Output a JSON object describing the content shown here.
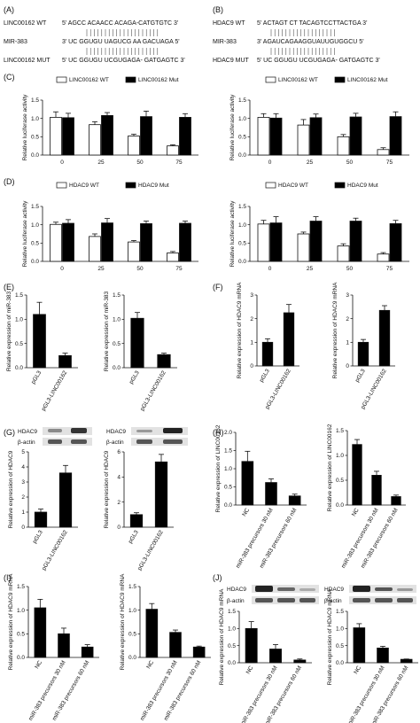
{
  "panels": {
    "A": {
      "label": "(A)",
      "rows": [
        {
          "name": "LINC00162 WT",
          "seq": "5' AGCC ACAACC ACAGA-CATGTGTC 3'"
        },
        {
          "name": "MIR-383",
          "seq": "3' UC GGUGU UAGUCG AA GACUAGA 5'"
        },
        {
          "name": "LINC00162 MUT",
          "seq": "5' UC GGUGU UCGUGAGA- GATGAGTC 3'"
        }
      ]
    },
    "B": {
      "label": "(B)",
      "rows": [
        {
          "name": "HDAC9 WT",
          "seq": "5' ACTAGT CT TACAGTCCTTACTGA 3'"
        },
        {
          "name": "MIR-383",
          "seq": "3' AGAUCAGAAGGUAUUGUGGCU 5'"
        },
        {
          "name": "HDAC9 MUT",
          "seq": "5' UC GGUGU UCGUGAGA- GATGAGTC 3'"
        }
      ]
    },
    "C": {
      "label": "(C)"
    },
    "D": {
      "label": "(D)"
    },
    "E": {
      "label": "(E)"
    },
    "F": {
      "label": "(F)"
    },
    "G": {
      "label": "(G)",
      "blot": [
        "HDAC9",
        "β-actin"
      ]
    },
    "H": {
      "label": "(H)"
    },
    "I": {
      "label": "(I)"
    },
    "J": {
      "label": "(J)",
      "blot": [
        "HDAC9",
        "β-actin"
      ]
    }
  },
  "chart_data": [
    {
      "id": "C-left",
      "type": "bar",
      "ylabel": "Relative luciferase activity",
      "categories": [
        "0",
        "25",
        "50",
        "75"
      ],
      "ylim": [
        0,
        1.5
      ],
      "yticks": [
        0,
        0.5,
        1.0,
        1.5
      ],
      "legend": [
        "LINC00162 WT",
        "LINC00162 Mut"
      ],
      "series": [
        {
          "name": "LINC00162 WT",
          "values": [
            1.03,
            0.83,
            0.52,
            0.25
          ],
          "err": [
            0.15,
            0.08,
            0.05,
            0.03
          ]
        },
        {
          "name": "LINC00162 Mut",
          "values": [
            1.02,
            1.08,
            1.05,
            1.03
          ],
          "err": [
            0.12,
            0.08,
            0.15,
            0.1
          ]
        }
      ]
    },
    {
      "id": "C-right",
      "type": "bar",
      "ylabel": "Relative luciferase activity",
      "categories": [
        "0",
        "25",
        "50",
        "75"
      ],
      "ylim": [
        0,
        1.5
      ],
      "yticks": [
        0,
        0.5,
        1.0,
        1.5
      ],
      "legend": [
        "LINC00162 WT",
        "LINC00162 Mut"
      ],
      "series": [
        {
          "name": "LINC00162 WT",
          "values": [
            1.03,
            0.82,
            0.5,
            0.15
          ],
          "err": [
            0.1,
            0.15,
            0.06,
            0.05
          ]
        },
        {
          "name": "LINC00162 Mut",
          "values": [
            1.01,
            1.02,
            1.04,
            1.05
          ],
          "err": [
            0.12,
            0.1,
            0.1,
            0.13
          ]
        }
      ]
    },
    {
      "id": "D-left",
      "type": "bar",
      "ylabel": "Relative luciferase activity",
      "categories": [
        "0",
        "25",
        "50",
        "75"
      ],
      "ylim": [
        0,
        1.5
      ],
      "yticks": [
        0,
        0.5,
        1.0,
        1.5
      ],
      "legend": [
        "HDAC9 WT",
        "HDAC9 Mut"
      ],
      "series": [
        {
          "name": "HDAC9 WT",
          "values": [
            1.01,
            0.68,
            0.53,
            0.23
          ],
          "err": [
            0.06,
            0.07,
            0.04,
            0.04
          ]
        },
        {
          "name": "HDAC9 Mut",
          "values": [
            1.04,
            1.05,
            1.03,
            1.04
          ],
          "err": [
            0.1,
            0.12,
            0.07,
            0.06
          ]
        }
      ]
    },
    {
      "id": "D-right",
      "type": "bar",
      "ylabel": "Relative luciferase activity",
      "categories": [
        "0",
        "25",
        "50",
        "75"
      ],
      "ylim": [
        0,
        1.5
      ],
      "yticks": [
        0,
        0.5,
        1.0,
        1.5
      ],
      "legend": [
        "HDAC9 WT",
        "HDAC9 Mut"
      ],
      "series": [
        {
          "name": "HDAC9 WT",
          "values": [
            1.02,
            0.75,
            0.42,
            0.2
          ],
          "err": [
            0.1,
            0.05,
            0.06,
            0.04
          ]
        },
        {
          "name": "HDAC9 Mut",
          "values": [
            1.05,
            1.1,
            1.1,
            1.03
          ],
          "err": [
            0.17,
            0.12,
            0.08,
            0.09
          ]
        }
      ]
    },
    {
      "id": "E-left",
      "type": "bar",
      "ylabel": "Relative expression of miR-383",
      "categories": [
        "pGL3",
        "pGL3-LINC00162"
      ],
      "ylim": [
        0,
        1.5
      ],
      "yticks": [
        0,
        0.5,
        1.0,
        1.5
      ],
      "series": [
        {
          "values": [
            1.1,
            0.25
          ],
          "err": [
            0.25,
            0.05
          ]
        }
      ]
    },
    {
      "id": "E-right",
      "type": "bar",
      "ylabel": "Relative expression of miR-383",
      "categories": [
        "pGL3",
        "pGL3-LINC00162"
      ],
      "ylim": [
        0,
        1.5
      ],
      "yticks": [
        0,
        0.5,
        1.0,
        1.5
      ],
      "series": [
        {
          "values": [
            1.02,
            0.27
          ],
          "err": [
            0.12,
            0.03
          ]
        }
      ]
    },
    {
      "id": "F-left",
      "type": "bar",
      "ylabel": "Relative expression of HDAC9 mRNA",
      "categories": [
        "pGL3",
        "pGL3-LINC00162"
      ],
      "ylim": [
        0,
        3
      ],
      "yticks": [
        0,
        1,
        2,
        3
      ],
      "series": [
        {
          "values": [
            1.0,
            2.25
          ],
          "err": [
            0.15,
            0.35
          ]
        }
      ]
    },
    {
      "id": "F-right",
      "type": "bar",
      "ylabel": "Relative expression of HDAC9 mRNA",
      "categories": [
        "pGL3",
        "pGL3-LINC00162"
      ],
      "ylim": [
        0,
        3
      ],
      "yticks": [
        0,
        1,
        2,
        3
      ],
      "series": [
        {
          "values": [
            1.0,
            2.35
          ],
          "err": [
            0.12,
            0.2
          ]
        }
      ]
    },
    {
      "id": "G-left",
      "type": "bar",
      "ylabel": "Relative expression of HDAC9",
      "categories": [
        "pGL3",
        "pGL3-LINC00162"
      ],
      "ylim": [
        0,
        5
      ],
      "yticks": [
        0,
        1,
        2,
        3,
        4,
        5
      ],
      "series": [
        {
          "values": [
            1.0,
            3.6
          ],
          "err": [
            0.2,
            0.5
          ]
        }
      ]
    },
    {
      "id": "G-right",
      "type": "bar",
      "ylabel": "Relative expression of HDAC9",
      "categories": [
        "pGL3",
        "pGL3-LINC00162"
      ],
      "ylim": [
        0,
        6
      ],
      "yticks": [
        0,
        2,
        4,
        6
      ],
      "series": [
        {
          "values": [
            1.0,
            5.2
          ],
          "err": [
            0.15,
            0.6
          ]
        }
      ]
    },
    {
      "id": "H-left",
      "type": "bar",
      "ylabel": "Relative expression of LINC00162",
      "categories": [
        "NC",
        "miR-383 precursors 30 nM",
        "miR-383 precursors 60 nM"
      ],
      "ylim": [
        0,
        2.0
      ],
      "yticks": [
        0,
        0.5,
        1.0,
        1.5,
        2.0
      ],
      "series": [
        {
          "values": [
            1.2,
            0.62,
            0.25
          ],
          "err": [
            0.28,
            0.1,
            0.05
          ]
        }
      ]
    },
    {
      "id": "H-right",
      "type": "bar",
      "ylabel": "Relative expression of LINC00162",
      "categories": [
        "NC",
        "miR-383 precursors 30 nM",
        "miR-383 precursors 60 nM"
      ],
      "ylim": [
        0,
        1.5
      ],
      "yticks": [
        0,
        0.5,
        1.0,
        1.5
      ],
      "series": [
        {
          "values": [
            1.22,
            0.6,
            0.17
          ],
          "err": [
            0.1,
            0.08,
            0.03
          ]
        }
      ]
    },
    {
      "id": "I-left",
      "type": "bar",
      "ylabel": "Relative expression of HDAC9 mRNA",
      "categories": [
        "NC",
        "miR-383 precursors 30 nM",
        "miR-383 precursors 60 nM"
      ],
      "ylim": [
        0,
        1.5
      ],
      "yticks": [
        0,
        0.5,
        1.0,
        1.5
      ],
      "series": [
        {
          "values": [
            1.05,
            0.5,
            0.22
          ],
          "err": [
            0.18,
            0.12,
            0.05
          ]
        }
      ]
    },
    {
      "id": "I-right",
      "type": "bar",
      "ylabel": "Relative expression of HDAC9 mRNA",
      "categories": [
        "NC",
        "miR-383 precursors 30 nM",
        "miR-383 precursors 60 nM"
      ],
      "ylim": [
        0,
        1.5
      ],
      "yticks": [
        0,
        0.5,
        1.0,
        1.5
      ],
      "series": [
        {
          "values": [
            1.02,
            0.53,
            0.22
          ],
          "err": [
            0.12,
            0.05,
            0.02
          ]
        }
      ]
    },
    {
      "id": "J-left",
      "type": "bar",
      "ylabel": "Relative expression of HDAC9 mRNA",
      "categories": [
        "NC",
        "miR-383 precursors 30 nM",
        "miR-383 precursors 60 nM"
      ],
      "ylim": [
        0,
        1.5
      ],
      "yticks": [
        0,
        0.5,
        1.0,
        1.5
      ],
      "series": [
        {
          "values": [
            1.0,
            0.4,
            0.08
          ],
          "err": [
            0.2,
            0.13,
            0.03
          ]
        }
      ]
    },
    {
      "id": "J-right",
      "type": "bar",
      "ylabel": "Relative expression of HDAC9 mRNA",
      "categories": [
        "NC",
        "miR-383 precursors 30 nM",
        "miR-383 precursors 60 nM"
      ],
      "ylim": [
        0,
        1.5
      ],
      "yticks": [
        0,
        0.5,
        1.0,
        1.5
      ],
      "series": [
        {
          "values": [
            1.02,
            0.43,
            0.1
          ],
          "err": [
            0.12,
            0.05,
            0.01
          ]
        }
      ]
    }
  ]
}
